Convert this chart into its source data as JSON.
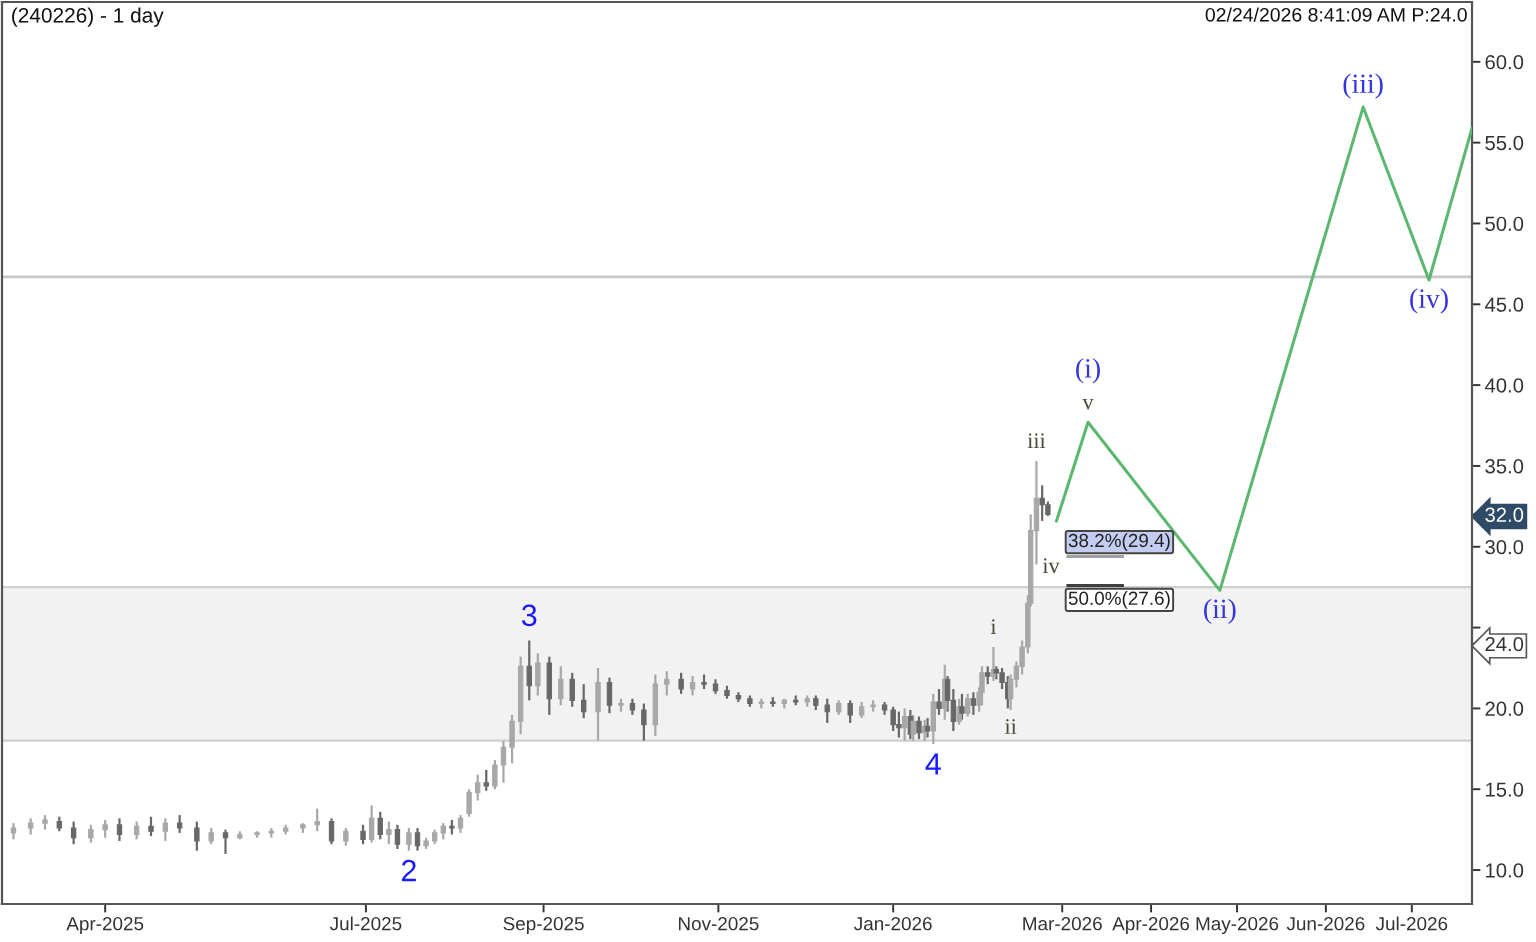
{
  "chart_data": {
    "type": "candlestick",
    "title": "(240226) - 1 day",
    "xlim": [
      "2025-02-24",
      "2026-07-22"
    ],
    "ylim": [
      7.9,
      63.7
    ],
    "xticks": [
      {
        "value": "2025-04-01",
        "label": "Apr-2025"
      },
      {
        "value": "2025-07-01",
        "label": "Jul-2025"
      },
      {
        "value": "2025-09-01",
        "label": "Sep-2025"
      },
      {
        "value": "2025-11-01",
        "label": "Nov-2025"
      },
      {
        "value": "2026-01-01",
        "label": "Jan-2026"
      },
      {
        "value": "2026-03-01",
        "label": "Mar-2026"
      },
      {
        "value": "2026-04-01",
        "label": "Apr-2026"
      },
      {
        "value": "2026-05-01",
        "label": "May-2026"
      },
      {
        "value": "2026-06-01",
        "label": "Jun-2026"
      },
      {
        "value": "2026-07-01",
        "label": "Jul-2026"
      }
    ],
    "yticks": [
      {
        "value": 10,
        "label": "10.0"
      },
      {
        "value": 15,
        "label": "15.0"
      },
      {
        "value": 20,
        "label": "20.0"
      },
      {
        "value": 25,
        "label": null
      },
      {
        "value": 30,
        "label": "30.0"
      },
      {
        "value": 35,
        "label": "35.0"
      },
      {
        "value": 40,
        "label": "40.0"
      },
      {
        "value": 45,
        "label": "45.0"
      },
      {
        "value": 50,
        "label": "50.0"
      },
      {
        "value": 55,
        "label": "55.0"
      },
      {
        "value": 60,
        "label": "60.0"
      },
      {
        "value": 24,
        "label": "24.0"
      },
      {
        "value": 32,
        "label": "32.0"
      }
    ],
    "grid": false,
    "bands": [
      {
        "axis": "y",
        "from": 18.0,
        "to": 27.5,
        "color": "#f2f2f2"
      }
    ],
    "ref_lines": [
      {
        "axis": "y",
        "value": 46.7,
        "color": "#c8c8c8"
      }
    ],
    "series": [
      {
        "colors": [
          "#a8a8a8",
          "#a8a8a8",
          "#a8a8a8",
          "#686868",
          "#686868",
          "#a8a8a8",
          "#a8a8a8",
          "#686868",
          "#a8a8a8",
          "#686868",
          "#a8a8a8",
          "#686868",
          "#686868",
          "#a8a8a8",
          "#686868",
          "#a8a8a8",
          "#a8a8a8",
          "#a8a8a8",
          "#a8a8a8",
          "#a8a8a8",
          "#a8a8a8",
          "#686868",
          "#a8a8a8",
          "#686868",
          "#a8a8a8",
          "#686868",
          "#a8a8a8",
          "#686868",
          "#a8a8a8",
          "#686868",
          "#a8a8a8",
          "#a8a8a8",
          "#a8a8a8",
          "#686868",
          "#a8a8a8",
          "#a8a8a8",
          "#a8a8a8",
          "#686868",
          "#a8a8a8",
          "#a8a8a8",
          "#a8a8a8",
          "#a8a8a8",
          "#686868",
          "#a8a8a8",
          "#686868",
          "#a8a8a8",
          "#686868",
          "#686868",
          "#a8a8a8",
          "#686868",
          "#a8a8a8",
          "#686868",
          "#686868",
          "#a8a8a8",
          "#a8a8a8",
          "#686868",
          "#a8a8a8",
          "#686868",
          "#686868",
          "#686868",
          "#686868",
          "#686868",
          "#a8a8a8",
          "#686868",
          "#a8a8a8",
          "#686868",
          "#a8a8a8",
          "#686868",
          "#686868",
          "#a8a8a8",
          "#686868",
          "#a8a8a8",
          "#a8a8a8",
          "#686868",
          "#686868",
          "#686868",
          "#a8a8a8",
          "#686868",
          "#a8a8a8",
          "#686868",
          "#a8a8a8",
          "#686868",
          "#a8a8a8",
          "#686868",
          "#a8a8a8",
          "#686868",
          "#686868",
          "#a8a8a8",
          "#686868",
          "#a8a8a8",
          "#686868",
          "#a8a8a8",
          "#a8a8a8",
          "#686868",
          "#a8a8a8",
          "#686868",
          "#686868",
          "#686868",
          "#a8a8a8",
          "#a8a8a8",
          "#a8a8a8",
          "#a8a8a8",
          "#a8a8a8",
          "#a8a8a8",
          "#686868",
          "#686868"
        ],
        "x": [
          "2025-02-28",
          "2025-03-06",
          "2025-03-11",
          "2025-03-16",
          "2025-03-21",
          "2025-03-27",
          "2025-04-01",
          "2025-04-06",
          "2025-04-12",
          "2025-04-17",
          "2025-04-22",
          "2025-04-27",
          "2025-05-03",
          "2025-05-08",
          "2025-05-13",
          "2025-05-18",
          "2025-05-24",
          "2025-05-29",
          "2025-06-03",
          "2025-06-09",
          "2025-06-14",
          "2025-06-19",
          "2025-06-24",
          "2025-06-30",
          "2025-07-03",
          "2025-07-06",
          "2025-07-09",
          "2025-07-12",
          "2025-07-16",
          "2025-07-19",
          "2025-07-22",
          "2025-07-25",
          "2025-07-28",
          "2025-07-31",
          "2025-08-03",
          "2025-08-06",
          "2025-08-09",
          "2025-08-12",
          "2025-08-15",
          "2025-08-18",
          "2025-08-21",
          "2025-08-24",
          "2025-08-27",
          "2025-08-30",
          "2025-09-03",
          "2025-09-07",
          "2025-09-11",
          "2025-09-15",
          "2025-09-20",
          "2025-09-24",
          "2025-09-28",
          "2025-10-02",
          "2025-10-06",
          "2025-10-10",
          "2025-10-14",
          "2025-10-19",
          "2025-10-23",
          "2025-10-27",
          "2025-10-31",
          "2025-11-04",
          "2025-11-08",
          "2025-11-12",
          "2025-11-16",
          "2025-11-20",
          "2025-11-24",
          "2025-11-28",
          "2025-12-02",
          "2025-12-05",
          "2025-12-09",
          "2025-12-13",
          "2025-12-17",
          "2025-12-21",
          "2025-12-25",
          "2025-12-29",
          "2026-01-01",
          "2026-01-03",
          "2026-01-05",
          "2026-01-07",
          "2026-01-08",
          "2026-01-10",
          "2026-01-12",
          "2026-01-13",
          "2026-01-15",
          "2026-01-17",
          "2026-01-19",
          "2026-01-20",
          "2026-01-22",
          "2026-01-24",
          "2026-01-25",
          "2026-01-27",
          "2026-01-29",
          "2026-01-31",
          "2026-02-01",
          "2026-02-03",
          "2026-02-05",
          "2026-02-06",
          "2026-02-08",
          "2026-02-10",
          "2026-02-11",
          "2026-02-13",
          "2026-02-15",
          "2026-02-17",
          "2026-02-18",
          "2026-02-20",
          "2026-02-22",
          "2026-02-24"
        ],
        "ohlc": [
          [
            12.3,
            12.9,
            11.9,
            12.6
          ],
          [
            12.6,
            13.2,
            12.2,
            12.9
          ],
          [
            12.9,
            13.4,
            12.5,
            13.1
          ],
          [
            13.0,
            13.3,
            12.4,
            12.6
          ],
          [
            12.6,
            13.0,
            11.6,
            12.0
          ],
          [
            12.0,
            12.8,
            11.7,
            12.5
          ],
          [
            12.5,
            13.1,
            12.0,
            12.8
          ],
          [
            12.8,
            13.2,
            11.8,
            12.2
          ],
          [
            12.2,
            13.0,
            11.9,
            12.7
          ],
          [
            12.7,
            13.3,
            12.1,
            12.4
          ],
          [
            12.4,
            13.2,
            11.8,
            12.9
          ],
          [
            12.9,
            13.4,
            12.3,
            12.6
          ],
          [
            12.6,
            13.0,
            11.2,
            11.8
          ],
          [
            11.8,
            12.6,
            11.6,
            12.3
          ],
          [
            12.3,
            12.5,
            11.0,
            12.0
          ],
          [
            12.0,
            12.4,
            11.9,
            12.2
          ],
          [
            12.2,
            12.4,
            12.0,
            12.3
          ],
          [
            12.3,
            12.6,
            12.0,
            12.4
          ],
          [
            12.4,
            12.8,
            12.2,
            12.6
          ],
          [
            12.6,
            12.9,
            12.3,
            12.8
          ],
          [
            12.8,
            13.8,
            12.4,
            13.0
          ],
          [
            13.0,
            13.2,
            11.6,
            11.8
          ],
          [
            11.8,
            12.6,
            11.5,
            12.4
          ],
          [
            12.4,
            12.8,
            11.6,
            11.9
          ],
          [
            11.9,
            14.0,
            11.7,
            13.2
          ],
          [
            13.2,
            13.6,
            11.9,
            12.2
          ],
          [
            12.2,
            13.0,
            11.6,
            12.5
          ],
          [
            12.5,
            12.8,
            11.3,
            11.6
          ],
          [
            11.6,
            12.6,
            11.2,
            12.3
          ],
          [
            12.3,
            12.6,
            11.2,
            11.5
          ],
          [
            11.5,
            12.0,
            11.3,
            11.8
          ],
          [
            11.8,
            12.5,
            11.6,
            12.3
          ],
          [
            12.3,
            12.9,
            11.9,
            12.7
          ],
          [
            12.7,
            13.1,
            12.2,
            12.6
          ],
          [
            12.6,
            13.4,
            12.3,
            13.2
          ],
          [
            13.5,
            15.0,
            13.3,
            14.8
          ],
          [
            14.8,
            15.9,
            14.3,
            15.4
          ],
          [
            15.4,
            16.2,
            14.9,
            15.2
          ],
          [
            15.2,
            16.8,
            15.0,
            16.5
          ],
          [
            16.5,
            18.0,
            15.4,
            17.6
          ],
          [
            17.6,
            19.6,
            16.6,
            19.2
          ],
          [
            19.2,
            23.2,
            18.4,
            22.6
          ],
          [
            22.6,
            24.2,
            20.5,
            21.4
          ],
          [
            21.4,
            23.4,
            20.8,
            22.8
          ],
          [
            22.8,
            23.2,
            19.6,
            20.6
          ],
          [
            20.6,
            22.6,
            20.2,
            21.8
          ],
          [
            21.8,
            22.2,
            20.1,
            20.5
          ],
          [
            20.5,
            21.5,
            19.4,
            19.8
          ],
          [
            19.8,
            22.5,
            18.0,
            21.6
          ],
          [
            21.6,
            21.9,
            19.7,
            20.2
          ],
          [
            20.2,
            20.6,
            19.8,
            20.3
          ],
          [
            20.3,
            20.6,
            19.6,
            19.9
          ],
          [
            19.9,
            20.3,
            18.0,
            19.0
          ],
          [
            19.0,
            22.1,
            18.3,
            21.5
          ],
          [
            21.5,
            22.3,
            20.8,
            21.8
          ],
          [
            21.8,
            22.2,
            20.9,
            21.2
          ],
          [
            21.2,
            22.0,
            20.8,
            21.6
          ],
          [
            21.6,
            22.1,
            21.2,
            21.5
          ],
          [
            21.5,
            21.8,
            20.9,
            21.1
          ],
          [
            21.1,
            21.4,
            20.6,
            20.8
          ],
          [
            20.8,
            21.0,
            20.4,
            20.6
          ],
          [
            20.6,
            20.8,
            20.1,
            20.3
          ],
          [
            20.3,
            20.6,
            20.0,
            20.4
          ],
          [
            20.4,
            20.7,
            20.1,
            20.3
          ],
          [
            20.3,
            20.6,
            20.0,
            20.5
          ],
          [
            20.5,
            20.8,
            20.2,
            20.4
          ],
          [
            20.4,
            20.8,
            20.1,
            20.6
          ],
          [
            20.6,
            20.8,
            19.9,
            20.2
          ],
          [
            20.2,
            20.6,
            19.1,
            19.8
          ],
          [
            19.8,
            20.5,
            19.6,
            20.3
          ],
          [
            20.3,
            20.5,
            19.1,
            19.6
          ],
          [
            19.6,
            20.4,
            19.4,
            20.1
          ],
          [
            20.1,
            20.5,
            19.8,
            20.2
          ],
          [
            20.2,
            20.4,
            19.6,
            19.9
          ],
          [
            19.9,
            20.1,
            18.6,
            19.0
          ],
          [
            19.0,
            19.8,
            18.2,
            18.8
          ],
          [
            18.8,
            20.0,
            18.0,
            19.5
          ],
          [
            19.5,
            19.9,
            18.1,
            18.4
          ],
          [
            18.4,
            19.6,
            18.0,
            19.2
          ],
          [
            19.2,
            19.5,
            18.1,
            18.5
          ],
          [
            18.5,
            19.3,
            18.0,
            18.9
          ],
          [
            18.9,
            19.4,
            18.2,
            18.6
          ],
          [
            18.6,
            20.9,
            17.8,
            20.4
          ],
          [
            20.4,
            21.2,
            19.6,
            20.0
          ],
          [
            20.0,
            22.7,
            19.3,
            21.8
          ],
          [
            21.8,
            22.0,
            19.8,
            20.5
          ],
          [
            20.5,
            21.2,
            18.6,
            19.2
          ],
          [
            19.2,
            20.6,
            19.0,
            20.1
          ],
          [
            20.1,
            20.9,
            19.3,
            19.7
          ],
          [
            19.7,
            20.9,
            19.5,
            20.6
          ],
          [
            20.6,
            21.0,
            19.6,
            20.2
          ],
          [
            20.2,
            21.3,
            19.8,
            21.0
          ],
          [
            21.0,
            22.6,
            20.2,
            22.2
          ],
          [
            22.2,
            22.6,
            21.5,
            22.0
          ],
          [
            22.0,
            23.8,
            21.7,
            22.4
          ],
          [
            22.4,
            22.6,
            21.8,
            22.2
          ],
          [
            22.2,
            22.5,
            21.2,
            21.6
          ],
          [
            21.6,
            22.0,
            20.0,
            20.6
          ],
          [
            20.6,
            22.1,
            19.9,
            21.8
          ],
          [
            21.8,
            22.9,
            21.3,
            22.6
          ],
          [
            22.6,
            24.2,
            22.1,
            23.8
          ],
          [
            23.8,
            27.0,
            23.4,
            26.5
          ],
          [
            26.5,
            32.0,
            26.3,
            31.0
          ],
          [
            31.0,
            35.3,
            28.9,
            33.0
          ],
          [
            33.0,
            33.8,
            31.6,
            32.6
          ],
          [
            32.6,
            32.8,
            31.9,
            32.0
          ]
        ]
      },
      {
        "type": "line",
        "color": "#5cb870",
        "x": [
          "2026-02-27",
          "2026-03-10",
          "2026-04-25",
          "2026-06-14",
          "2026-07-07",
          "2026-07-22"
        ],
        "values": [
          31.6,
          37.7,
          27.3,
          57.2,
          46.5,
          55.9
        ]
      },
      {
        "type": "line",
        "color": "#a0a0a0",
        "x": [
          "2026-03-03",
          "2026-03-22"
        ],
        "values": [
          29.4,
          29.4
        ]
      },
      {
        "type": "line",
        "color": "#404040",
        "x": [
          "2026-03-03",
          "2026-03-22"
        ],
        "values": [
          27.6,
          27.6
        ]
      }
    ],
    "annotations": [
      "02/24/2026 8:41:09 AM P:24.0",
      {
        "text": "2",
        "x": "2025-07-16",
        "y": 11.2
      },
      {
        "text": "3",
        "x": "2025-08-27",
        "y": 24.2
      },
      {
        "text": "4",
        "x": "2026-01-15",
        "y": 17.8
      },
      {
        "text": "i",
        "x": "2026-02-05",
        "y": 23.8
      },
      {
        "text": "ii",
        "x": "2026-02-11",
        "y": 19.9
      },
      {
        "text": "iii",
        "x": "2026-02-20",
        "y": 35.3
      },
      {
        "text": "iv",
        "x": "2026-03-03",
        "y": 29.4
      },
      {
        "text": "v",
        "x": "2026-03-10",
        "y": 37.7
      },
      {
        "text": "(i)",
        "x": "2026-03-10",
        "y": 37.7
      },
      {
        "text": "(ii)",
        "x": "2026-04-25",
        "y": 27.3
      },
      {
        "text": "(iii)",
        "x": "2026-06-14",
        "y": 57.2
      },
      {
        "text": "(iv)",
        "x": "2026-07-07",
        "y": 46.5
      },
      {
        "text": "38.2%(29.4)",
        "x": "2026-03-03",
        "y": 29.4
      },
      {
        "text": "50.0%(27.6)",
        "x": "2026-03-03",
        "y": 27.6
      }
    ]
  }
}
